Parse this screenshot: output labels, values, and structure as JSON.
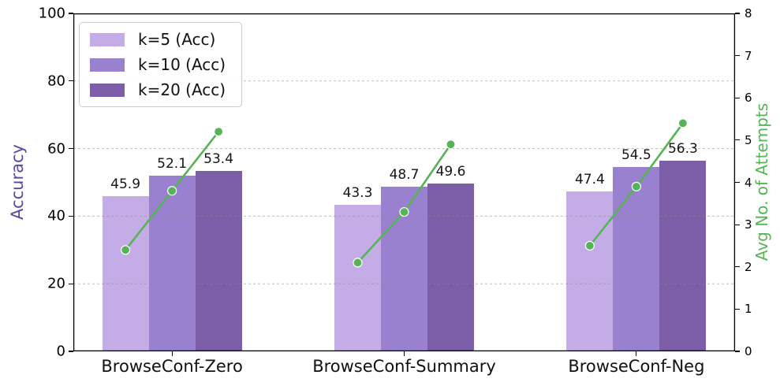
{
  "chart_data": {
    "type": "bar",
    "title": "",
    "categories": [
      "BrowseConf-Zero",
      "BrowseConf-Summary",
      "BrowseConf-Neg"
    ],
    "series": [
      {
        "name": "k=5 (Acc)",
        "type": "bar",
        "color": "#c4ace7",
        "values": [
          45.9,
          43.3,
          47.4
        ]
      },
      {
        "name": "k=10 (Acc)",
        "type": "bar",
        "color": "#9a81d0",
        "values": [
          52.1,
          48.7,
          54.5
        ]
      },
      {
        "name": "k=20 (Acc)",
        "type": "bar",
        "color": "#7b5ea7",
        "values": [
          53.4,
          49.6,
          56.3
        ]
      }
    ],
    "line_series": {
      "name": "Avg No. of Attempts",
      "type": "line",
      "color": "#56b356",
      "marker": "circle",
      "values_by_group": [
        [
          2.4,
          3.8,
          5.2
        ],
        [
          2.1,
          3.3,
          4.9
        ],
        [
          2.5,
          3.9,
          5.4
        ]
      ]
    },
    "ylabel": "Accuracy",
    "y2label": "Avg No. of Attempts",
    "ylabel_color": "#564a9e",
    "y2label_color": "#56b356",
    "ylim": [
      0,
      100
    ],
    "y2lim": [
      0,
      8
    ],
    "yticks": [
      0,
      20,
      40,
      60,
      80,
      100
    ],
    "y2ticks": [
      0,
      1,
      2,
      3,
      4,
      5,
      6,
      7,
      8
    ],
    "grid": {
      "axis": "y",
      "style": "dashed",
      "color": "#8a8a8a"
    },
    "legend": {
      "position": "upper-left"
    },
    "spine_color": "#000000"
  }
}
